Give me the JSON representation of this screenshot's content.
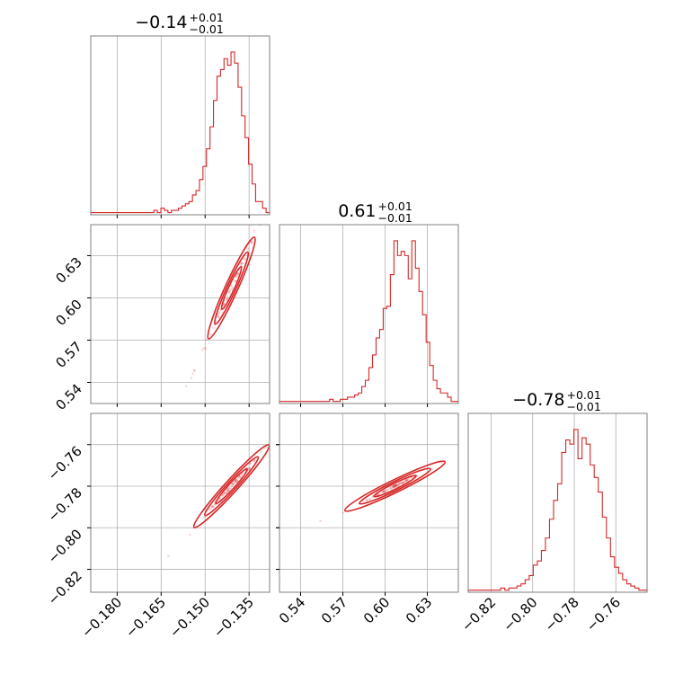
{
  "colors": {
    "series": "#d62728",
    "grid": "#b0b0b0",
    "frame": "#808080",
    "background": "#ffffff"
  },
  "chart_data": {
    "type": "corner",
    "parameters": [
      {
        "range": [
          -0.189,
          -0.128
        ],
        "ticks": [
          "−0.180",
          "−0.165",
          "−0.150",
          "−0.135"
        ],
        "tick_values": [
          -0.18,
          -0.165,
          -0.15,
          -0.135
        ],
        "title": {
          "value": "−0.14",
          "plus": "+0.01",
          "minus": "−0.01"
        }
      },
      {
        "range": [
          0.525,
          0.652
        ],
        "ticks": [
          "0.54",
          "0.57",
          "0.60",
          "0.63"
        ],
        "tick_values": [
          0.54,
          0.57,
          0.6,
          0.63
        ],
        "title": {
          "value": "0.61",
          "plus": "+0.01",
          "minus": "−0.01"
        }
      },
      {
        "range": [
          -0.831,
          -0.745
        ],
        "ticks": [
          "−0.82",
          "−0.80",
          "−0.78",
          "−0.76"
        ],
        "tick_values": [
          -0.82,
          -0.8,
          -0.78,
          -0.76
        ],
        "title": {
          "value": "−0.78",
          "plus": "+0.01",
          "minus": "−0.01"
        }
      }
    ],
    "histograms": [
      {
        "param": 0,
        "bin_start": -0.189,
        "bin_end": -0.128,
        "counts": [
          1,
          1,
          1,
          1,
          1,
          1,
          1,
          1,
          1,
          1,
          1,
          1,
          1,
          1,
          1,
          1,
          1,
          1,
          2,
          1,
          3,
          2,
          1,
          2,
          2,
          3,
          4,
          5,
          6,
          9,
          11,
          16,
          22,
          30,
          40,
          52,
          63,
          66,
          71,
          68,
          74,
          69,
          58,
          45,
          35,
          23,
          14,
          6,
          6,
          3,
          1
        ]
      },
      {
        "param": 1,
        "bin_start": 0.525,
        "bin_end": 0.652,
        "counts": [
          1,
          1,
          1,
          1,
          1,
          1,
          1,
          1,
          1,
          1,
          1,
          1,
          1,
          1,
          2,
          1,
          1,
          2,
          2,
          3,
          3,
          4,
          5,
          8,
          11,
          17,
          23,
          31,
          35,
          45,
          46,
          61,
          77,
          70,
          72,
          70,
          59,
          77,
          64,
          53,
          42,
          29,
          18,
          11,
          7,
          5,
          5,
          3,
          1,
          1
        ]
      },
      {
        "param": 2,
        "bin_start": -0.831,
        "bin_end": -0.745,
        "counts": [
          1,
          1,
          1,
          1,
          1,
          1,
          1,
          1,
          2,
          1,
          2,
          2,
          3,
          4,
          6,
          8,
          13,
          15,
          20,
          26,
          35,
          44,
          52,
          67,
          73,
          71,
          78,
          64,
          74,
          71,
          61,
          55,
          48,
          36,
          26,
          17,
          12,
          9,
          6,
          4,
          3,
          2,
          1,
          1
        ]
      }
    ],
    "pairs": [
      {
        "x_param": 0,
        "y_param": 1,
        "slope": 4.6,
        "center": [
          -0.141,
          0.607
        ]
      },
      {
        "x_param": 0,
        "y_param": 2,
        "slope": 1.55,
        "center": [
          -0.141,
          -0.78
        ]
      },
      {
        "x_param": 1,
        "y_param": 2,
        "slope": 0.33,
        "center": [
          0.607,
          -0.78
        ]
      }
    ]
  }
}
